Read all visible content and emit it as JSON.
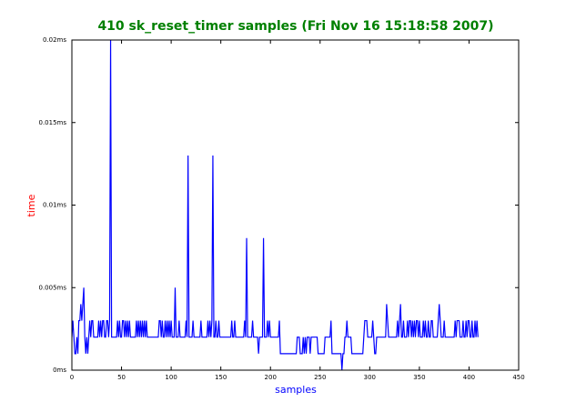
{
  "chart_data": {
    "type": "line",
    "title": "410 sk_reset_timer samples (Fri Nov 16 15:18:58 2007)",
    "xlabel": "samples",
    "ylabel": "time",
    "xlim": [
      0,
      450
    ],
    "xticks": [
      0,
      50,
      100,
      150,
      200,
      250,
      300,
      350,
      400,
      450
    ],
    "ylim": [
      0,
      0.02
    ],
    "yticks": [
      {
        "value": 0,
        "label": "0ms"
      },
      {
        "value": 0.005,
        "label": "0.005ms"
      },
      {
        "value": 0.01,
        "label": "0.01ms"
      },
      {
        "value": 0.015,
        "label": "0.015ms"
      },
      {
        "value": 0.02,
        "label": "0.02ms"
      }
    ],
    "series": [
      {
        "color": "#0000ff",
        "x": [
          0,
          1,
          2,
          3,
          4,
          5,
          6,
          7,
          8,
          9,
          10,
          11,
          12,
          13,
          14,
          15,
          16,
          17,
          18,
          19,
          20,
          21,
          22,
          23,
          24,
          25,
          26,
          27,
          28,
          29,
          30,
          31,
          32,
          33,
          34,
          35,
          36,
          37,
          38,
          39,
          40,
          41,
          42,
          43,
          44,
          45,
          46,
          47,
          48,
          49,
          50,
          51,
          52,
          53,
          54,
          55,
          56,
          57,
          58,
          59,
          60,
          61,
          62,
          63,
          64,
          65,
          66,
          67,
          68,
          69,
          70,
          71,
          72,
          73,
          74,
          75,
          76,
          77,
          78,
          79,
          80,
          81,
          82,
          83,
          84,
          85,
          86,
          87,
          88,
          89,
          90,
          91,
          92,
          93,
          94,
          95,
          96,
          97,
          98,
          99,
          100,
          101,
          102,
          103,
          104,
          105,
          106,
          107,
          108,
          109,
          110,
          111,
          112,
          113,
          114,
          115,
          116,
          117,
          118,
          119,
          120,
          121,
          122,
          123,
          124,
          125,
          126,
          127,
          128,
          129,
          130,
          131,
          132,
          133,
          134,
          135,
          136,
          137,
          138,
          139,
          140,
          141,
          142,
          143,
          144,
          145,
          146,
          147,
          148,
          149,
          150,
          151,
          152,
          153,
          154,
          155,
          156,
          157,
          158,
          159,
          160,
          161,
          162,
          163,
          164,
          165,
          166,
          167,
          168,
          169,
          170,
          171,
          172,
          173,
          174,
          175,
          176,
          177,
          178,
          179,
          180,
          181,
          182,
          183,
          184,
          185,
          186,
          187,
          188,
          189,
          190,
          191,
          192,
          193,
          194,
          195,
          196,
          197,
          198,
          199,
          200,
          201,
          202,
          203,
          204,
          205,
          206,
          207,
          208,
          209,
          210,
          211,
          212,
          213,
          214,
          215,
          216,
          217,
          218,
          219,
          220,
          221,
          222,
          223,
          224,
          225,
          226,
          227,
          228,
          229,
          230,
          231,
          232,
          233,
          234,
          235,
          236,
          237,
          238,
          239,
          240,
          241,
          242,
          243,
          244,
          245,
          246,
          247,
          248,
          249,
          250,
          251,
          252,
          253,
          254,
          255,
          256,
          257,
          258,
          259,
          260,
          261,
          262,
          263,
          264,
          265,
          266,
          267,
          268,
          269,
          270,
          271,
          272,
          273,
          274,
          275,
          276,
          277,
          278,
          279,
          280,
          281,
          282,
          283,
          284,
          285,
          286,
          287,
          288,
          289,
          290,
          291,
          292,
          293,
          294,
          295,
          296,
          297,
          298,
          299,
          300,
          301,
          302,
          303,
          304,
          305,
          306,
          307,
          308,
          309,
          310,
          311,
          312,
          313,
          314,
          315,
          316,
          317,
          318,
          319,
          320,
          321,
          322,
          323,
          324,
          325,
          326,
          327,
          328,
          329,
          330,
          331,
          332,
          333,
          334,
          335,
          336,
          337,
          338,
          339,
          340,
          341,
          342,
          343,
          344,
          345,
          346,
          347,
          348,
          349,
          350,
          351,
          352,
          353,
          354,
          355,
          356,
          357,
          358,
          359,
          360,
          361,
          362,
          363,
          364,
          365,
          366,
          367,
          368,
          369,
          370,
          371,
          372,
          373,
          374,
          375,
          376,
          377,
          378,
          379,
          380,
          381,
          382,
          383,
          384,
          385,
          386,
          387,
          388,
          389,
          390,
          391,
          392,
          393,
          394,
          395,
          396,
          397,
          398,
          399,
          400,
          401,
          402,
          403,
          404,
          405,
          406,
          407,
          408,
          409
        ],
        "values": [
          0.002,
          0.003,
          0.002,
          0.001,
          0.001,
          0.002,
          0.001,
          0.003,
          0.003,
          0.004,
          0.003,
          0.004,
          0.005,
          0.002,
          0.001,
          0.002,
          0.001,
          0.002,
          0.003,
          0.002,
          0.003,
          0.003,
          0.002,
          0.002,
          0.002,
          0.002,
          0.002,
          0.003,
          0.002,
          0.003,
          0.002,
          0.003,
          0.003,
          0.002,
          0.002,
          0.003,
          0.003,
          0.002,
          0.003,
          0.02,
          0.002,
          0.002,
          0.002,
          0.002,
          0.002,
          0.002,
          0.003,
          0.002,
          0.003,
          0.002,
          0.002,
          0.003,
          0.003,
          0.002,
          0.003,
          0.002,
          0.003,
          0.002,
          0.003,
          0.002,
          0.002,
          0.002,
          0.002,
          0.002,
          0.002,
          0.003,
          0.002,
          0.003,
          0.002,
          0.003,
          0.002,
          0.003,
          0.002,
          0.003,
          0.002,
          0.003,
          0.002,
          0.002,
          0.002,
          0.002,
          0.002,
          0.002,
          0.002,
          0.002,
          0.002,
          0.002,
          0.002,
          0.002,
          0.003,
          0.003,
          0.002,
          0.003,
          0.002,
          0.002,
          0.003,
          0.002,
          0.003,
          0.002,
          0.003,
          0.002,
          0.003,
          0.002,
          0.002,
          0.002,
          0.005,
          0.002,
          0.002,
          0.002,
          0.003,
          0.002,
          0.002,
          0.002,
          0.002,
          0.002,
          0.002,
          0.003,
          0.002,
          0.013,
          0.002,
          0.002,
          0.002,
          0.002,
          0.003,
          0.002,
          0.002,
          0.002,
          0.002,
          0.002,
          0.002,
          0.002,
          0.003,
          0.002,
          0.002,
          0.002,
          0.002,
          0.002,
          0.002,
          0.003,
          0.002,
          0.003,
          0.002,
          0.003,
          0.013,
          0.002,
          0.002,
          0.003,
          0.002,
          0.002,
          0.003,
          0.002,
          0.002,
          0.002,
          0.002,
          0.002,
          0.002,
          0.002,
          0.002,
          0.002,
          0.002,
          0.002,
          0.002,
          0.003,
          0.002,
          0.002,
          0.003,
          0.002,
          0.002,
          0.002,
          0.002,
          0.002,
          0.002,
          0.002,
          0.002,
          0.002,
          0.003,
          0.002,
          0.008,
          0.002,
          0.002,
          0.002,
          0.002,
          0.002,
          0.003,
          0.002,
          0.002,
          0.002,
          0.002,
          0.002,
          0.001,
          0.002,
          0.002,
          0.002,
          0.002,
          0.008,
          0.002,
          0.002,
          0.002,
          0.003,
          0.002,
          0.003,
          0.002,
          0.002,
          0.002,
          0.002,
          0.002,
          0.002,
          0.002,
          0.002,
          0.002,
          0.003,
          0.001,
          0.001,
          0.001,
          0.001,
          0.001,
          0.001,
          0.001,
          0.001,
          0.001,
          0.001,
          0.001,
          0.001,
          0.001,
          0.001,
          0.001,
          0.001,
          0.001,
          0.002,
          0.002,
          0.002,
          0.001,
          0.001,
          0.001,
          0.002,
          0.001,
          0.002,
          0.001,
          0.002,
          0.002,
          0.002,
          0.001,
          0.002,
          0.002,
          0.002,
          0.002,
          0.002,
          0.002,
          0.002,
          0.001,
          0.001,
          0.001,
          0.001,
          0.001,
          0.001,
          0.001,
          0.002,
          0.002,
          0.002,
          0.002,
          0.002,
          0.002,
          0.003,
          0.001,
          0.001,
          0.001,
          0.001,
          0.001,
          0.001,
          0.001,
          0.001,
          0.001,
          0.001,
          0,
          0.001,
          0.001,
          0.002,
          0.002,
          0.003,
          0.002,
          0.002,
          0.002,
          0.002,
          0.001,
          0.001,
          0.001,
          0.001,
          0.001,
          0.001,
          0.001,
          0.001,
          0.001,
          0.001,
          0.001,
          0.001,
          0.002,
          0.003,
          0.003,
          0.003,
          0.002,
          0.002,
          0.002,
          0.002,
          0.002,
          0.003,
          0.002,
          0.001,
          0.001,
          0.002,
          0.002,
          0.002,
          0.002,
          0.002,
          0.002,
          0.002,
          0.002,
          0.002,
          0.002,
          0.004,
          0.003,
          0.002,
          0.002,
          0.002,
          0.002,
          0.002,
          0.002,
          0.002,
          0.002,
          0.002,
          0.003,
          0.002,
          0.003,
          0.004,
          0.002,
          0.002,
          0.003,
          0.002,
          0.002,
          0.002,
          0.003,
          0.002,
          0.003,
          0.003,
          0.002,
          0.003,
          0.002,
          0.003,
          0.002,
          0.003,
          0.003,
          0.002,
          0.003,
          0.002,
          0.002,
          0.002,
          0.003,
          0.002,
          0.003,
          0.002,
          0.002,
          0.003,
          0.002,
          0.002,
          0.003,
          0.003,
          0.002,
          0.002,
          0.002,
          0.002,
          0.002,
          0.003,
          0.004,
          0.003,
          0.002,
          0.002,
          0.002,
          0.003,
          0.002,
          0.002,
          0.002,
          0.002,
          0.002,
          0.002,
          0.002,
          0.002,
          0.002,
          0.002,
          0.003,
          0.002,
          0.003,
          0.003,
          0.003,
          0.002,
          0.002,
          0.002,
          0.003,
          0.002,
          0.002,
          0.003,
          0.002,
          0.003,
          0.003,
          0.002,
          0.002,
          0.003,
          0.002,
          0.002,
          0.003,
          0.002,
          0.003,
          0.002
        ]
      }
    ]
  }
}
